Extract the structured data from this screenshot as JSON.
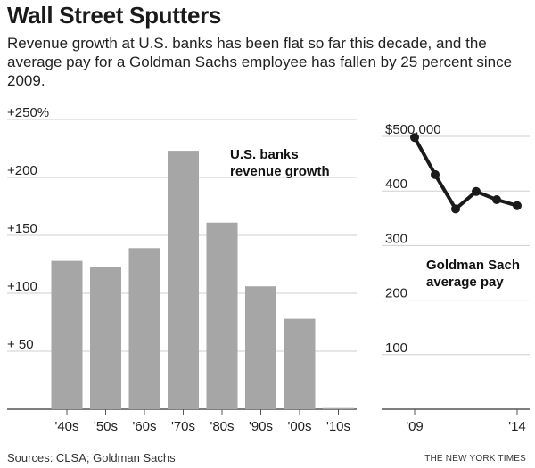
{
  "title": "Wall Street Sputters",
  "subtitle": "Revenue growth at U.S. banks has been flat so far this decade, and the average pay for a Goldman Sachs employee has fallen by 25 percent since 2009.",
  "source": "Sources: CLSA; Goldman Sachs",
  "credit": "THE NEW YORK TIMES",
  "colors": {
    "bar": "#a6a6a6",
    "line": "#1a1a1a",
    "grid": "#cfcfcf",
    "axis": "#555555"
  },
  "chart_data": [
    {
      "type": "bar",
      "label": [
        "U.S. banks",
        "revenue growth"
      ],
      "categories": [
        "'40s",
        "'50s",
        "'60s",
        "'70s",
        "'80s",
        "'90s",
        "'00s",
        "'10s"
      ],
      "values": [
        128,
        123,
        139,
        223,
        161,
        106,
        78,
        1
      ],
      "ylim": [
        0,
        250
      ],
      "yticks": [
        {
          "v": 250,
          "t": "+250%"
        },
        {
          "v": 200,
          "t": "+200"
        },
        {
          "v": 150,
          "t": "+150"
        },
        {
          "v": 100,
          "t": "+100"
        },
        {
          "v": 50,
          "t": "+  50"
        }
      ],
      "grid": true
    },
    {
      "type": "line",
      "label": [
        "Goldman Sach",
        "average pay"
      ],
      "x": [
        2009,
        2010,
        2011,
        2012,
        2013,
        2014
      ],
      "values": [
        498,
        430,
        367,
        399,
        384,
        373
      ],
      "xticks": [
        {
          "v": 2009,
          "t": "'09"
        },
        {
          "v": 2014,
          "t": "'14"
        }
      ],
      "ylim": [
        0,
        500
      ],
      "yticks": [
        {
          "v": 500,
          "t": "$500,000"
        },
        {
          "v": 400,
          "t": "400"
        },
        {
          "v": 300,
          "t": "300"
        },
        {
          "v": 200,
          "t": "200"
        },
        {
          "v": 100,
          "t": "100"
        }
      ],
      "grid": true
    }
  ]
}
